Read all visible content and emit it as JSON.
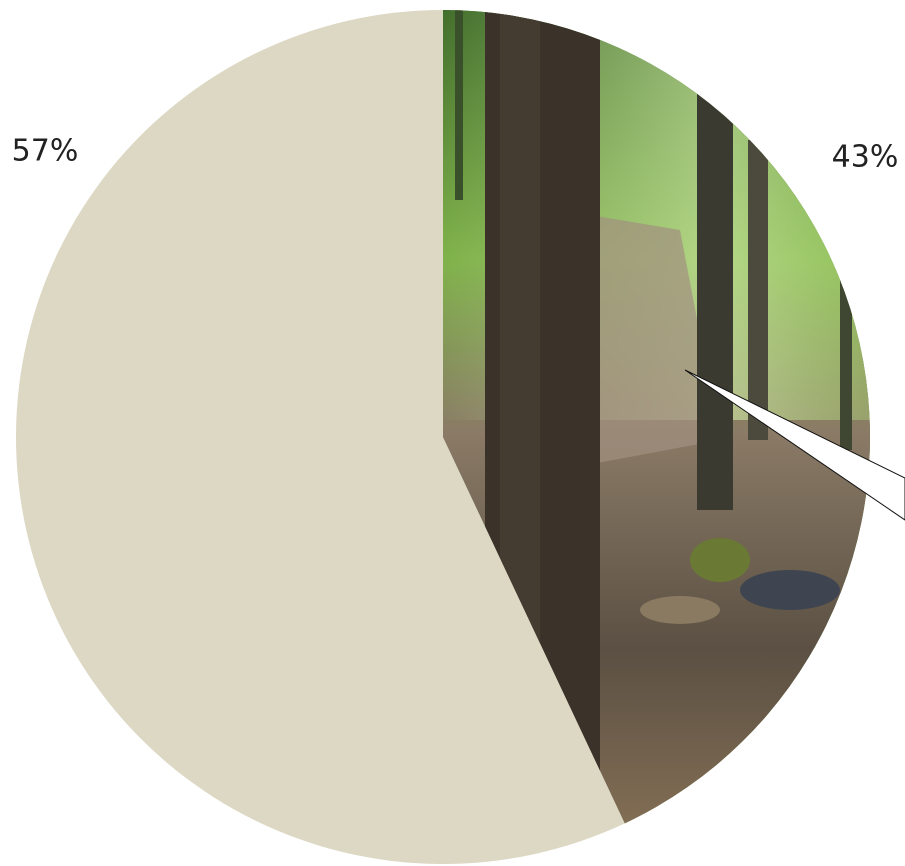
{
  "chart_data": {
    "type": "pie",
    "values": [
      43,
      57
    ],
    "value_labels": [
      "43%",
      "57%"
    ],
    "colors": [
      "#5f7a3e",
      "#dcd8c4"
    ]
  }
}
